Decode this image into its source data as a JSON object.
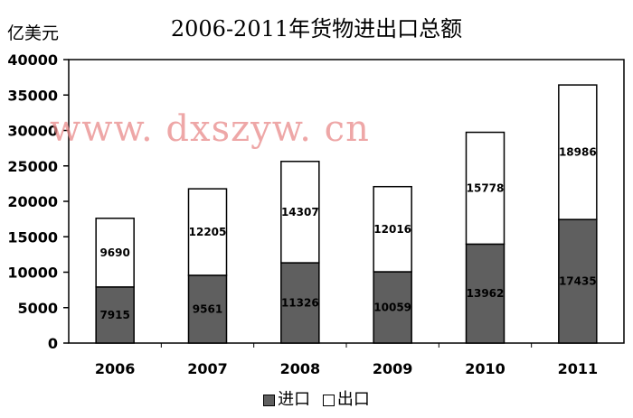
{
  "chart_data": {
    "type": "bar",
    "stacked": true,
    "title": "2006-2011年货物进出口总额",
    "ylabel": "亿美元",
    "xlabel": "",
    "categories": [
      "2006",
      "2007",
      "2008",
      "2009",
      "2010",
      "2011"
    ],
    "series": [
      {
        "name": "进口",
        "values": [
          7915,
          9561,
          11326,
          10059,
          13962,
          17435
        ],
        "color": "#5f5f5f"
      },
      {
        "name": "出口",
        "values": [
          9690,
          12205,
          14307,
          12016,
          15778,
          18986
        ],
        "color": "#ffffff"
      }
    ],
    "ylim": [
      0,
      40000
    ],
    "yticks": [
      "0",
      "5000",
      "10000",
      "15000",
      "20000",
      "25000",
      "30000",
      "35000",
      "40000"
    ],
    "grid": false,
    "legend": "bottom"
  },
  "watermark": "www. dxszyw. cn"
}
